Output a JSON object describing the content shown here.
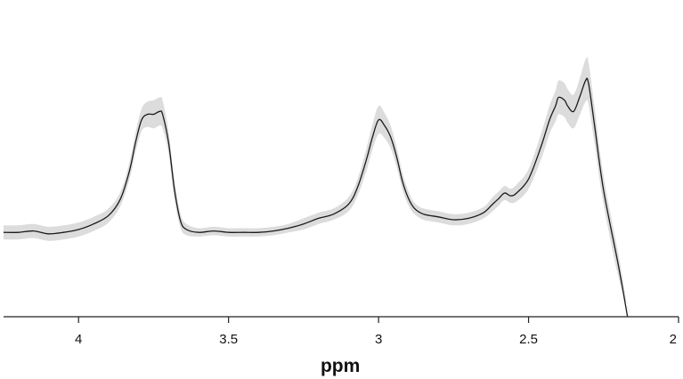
{
  "chart_data": {
    "type": "line",
    "title": "",
    "xlabel": "ppm",
    "ylabel": "",
    "x_reversed": true,
    "xlim": [
      4.25,
      2.0
    ],
    "ylim": [
      0,
      1
    ],
    "xticks": [
      4,
      3.5,
      3,
      2.5,
      2
    ],
    "xtick_labels": [
      "4",
      "3.5",
      "3",
      "2.5",
      "2"
    ],
    "grid": false,
    "band_color": "#dcdcdc",
    "line_color": "#1a1a1a",
    "series": [
      {
        "x": [
          4.25,
          4.2,
          4.15,
          4.1,
          4.05,
          4.0,
          3.95,
          3.9,
          3.86,
          3.83,
          3.81,
          3.79,
          3.77,
          3.75,
          3.73,
          3.72,
          3.7,
          3.68,
          3.66,
          3.64,
          3.6,
          3.55,
          3.5,
          3.45,
          3.4,
          3.35,
          3.3,
          3.25,
          3.2,
          3.15,
          3.1,
          3.07,
          3.04,
          3.02,
          3.0,
          2.98,
          2.96,
          2.94,
          2.92,
          2.9,
          2.88,
          2.85,
          2.8,
          2.75,
          2.7,
          2.65,
          2.62,
          2.6,
          2.58,
          2.56,
          2.54,
          2.5,
          2.46,
          2.43,
          2.41,
          2.4,
          2.38,
          2.37,
          2.35,
          2.33,
          2.31,
          2.3,
          2.28,
          2.25,
          2.2,
          2.17
        ],
        "y": [
          0.3,
          0.3,
          0.305,
          0.295,
          0.3,
          0.31,
          0.33,
          0.36,
          0.42,
          0.52,
          0.62,
          0.7,
          0.72,
          0.72,
          0.73,
          0.72,
          0.62,
          0.45,
          0.34,
          0.31,
          0.3,
          0.305,
          0.3,
          0.3,
          0.3,
          0.305,
          0.315,
          0.33,
          0.35,
          0.365,
          0.4,
          0.46,
          0.56,
          0.64,
          0.7,
          0.68,
          0.64,
          0.57,
          0.48,
          0.42,
          0.385,
          0.365,
          0.355,
          0.345,
          0.35,
          0.37,
          0.4,
          0.42,
          0.44,
          0.43,
          0.44,
          0.49,
          0.6,
          0.7,
          0.75,
          0.78,
          0.77,
          0.75,
          0.73,
          0.78,
          0.84,
          0.83,
          0.68,
          0.45,
          0.18,
          0.0
        ],
        "band": [
          0.025,
          0.025,
          0.025,
          0.025,
          0.025,
          0.025,
          0.025,
          0.025,
          0.025,
          0.03,
          0.035,
          0.04,
          0.045,
          0.05,
          0.05,
          0.05,
          0.04,
          0.035,
          0.025,
          0.02,
          0.015,
          0.015,
          0.015,
          0.015,
          0.015,
          0.015,
          0.015,
          0.02,
          0.02,
          0.02,
          0.025,
          0.03,
          0.04,
          0.045,
          0.05,
          0.045,
          0.04,
          0.035,
          0.03,
          0.025,
          0.02,
          0.02,
          0.02,
          0.02,
          0.02,
          0.02,
          0.025,
          0.025,
          0.025,
          0.025,
          0.03,
          0.035,
          0.045,
          0.05,
          0.055,
          0.06,
          0.06,
          0.06,
          0.06,
          0.065,
          0.075,
          0.075,
          0.065,
          0.05,
          0.04,
          0.03
        ]
      }
    ]
  }
}
